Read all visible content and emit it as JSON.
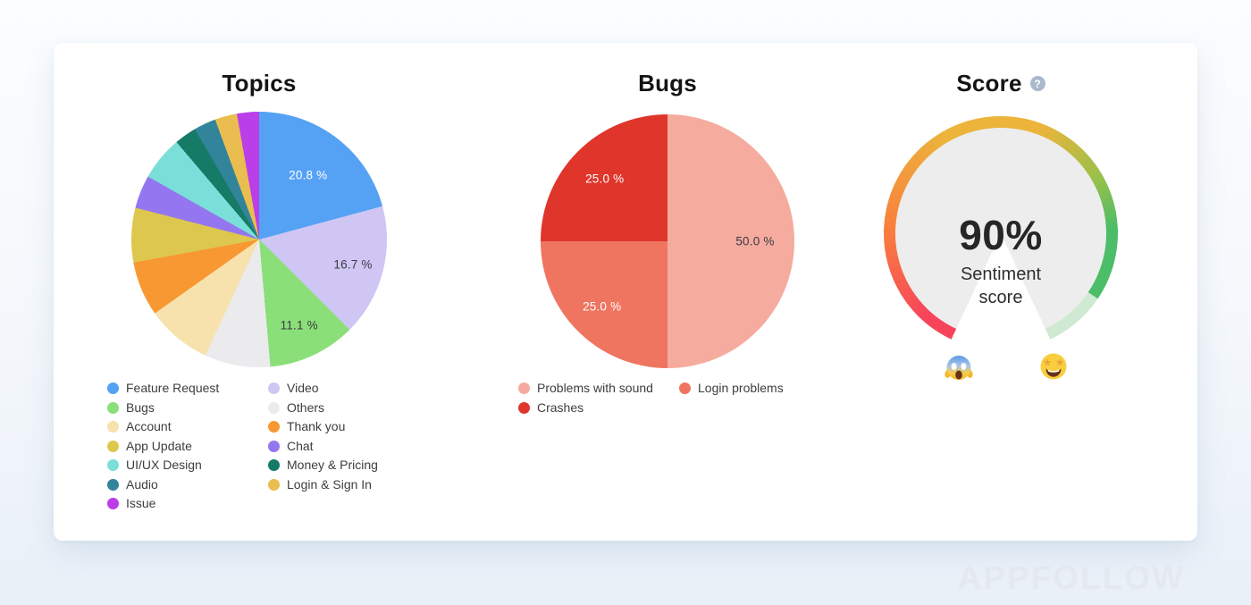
{
  "page": {
    "watermark": "APPFOLLOW"
  },
  "score_panel": {
    "help_label": "?"
  },
  "chart_data": [
    {
      "id": "topics",
      "type": "pie",
      "title": "Topics",
      "legend_position": "bottom",
      "slices": [
        {
          "label": "Feature Request",
          "value": 20.8,
          "color": "#55a2f4",
          "pct_label": "20.8 %",
          "label_color": "#ffffff",
          "label_r": 0.63
        },
        {
          "label": "Video",
          "value": 16.7,
          "color": "#cfc6f4",
          "pct_label": "16.7 %",
          "label_color": "#3a3a44",
          "label_r": 0.76
        },
        {
          "label": "Bugs",
          "value": 11.1,
          "color": "#8bdf79",
          "pct_label": "11.1 %",
          "label_color": "#3a3a44",
          "label_r": 0.74
        },
        {
          "label": "Others",
          "value": 8.3,
          "color": "#ebebee"
        },
        {
          "label": "Account",
          "value": 8.3,
          "color": "#f7e2ad"
        },
        {
          "label": "Thank you",
          "value": 6.9,
          "color": "#f89833"
        },
        {
          "label": "App Update",
          "value": 6.9,
          "color": "#ddc74e"
        },
        {
          "label": "Chat",
          "value": 4.2,
          "color": "#9477f0"
        },
        {
          "label": "UI/UX Design",
          "value": 5.6,
          "color": "#7adfd8"
        },
        {
          "label": "Money & Pricing",
          "value": 2.8,
          "color": "#157b66"
        },
        {
          "label": "Audio",
          "value": 2.8,
          "color": "#32849a"
        },
        {
          "label": "Login & Sign In",
          "value": 2.8,
          "color": "#e9bd4f"
        },
        {
          "label": "Issue",
          "value": 2.8,
          "color": "#bb3fe9"
        }
      ]
    },
    {
      "id": "bugs",
      "type": "pie",
      "title": "Bugs",
      "legend_position": "bottom",
      "slices": [
        {
          "label": "Problems with sound",
          "value": 50.0,
          "color": "#f5ab9e",
          "pct_label": "50.0 %",
          "label_color": "#3a3a44",
          "label_r": 0.69
        },
        {
          "label": "Login problems",
          "value": 25.0,
          "color": "#ef7560",
          "pct_label": "25.0 %",
          "label_color": "#ffffff",
          "label_r": 0.73
        },
        {
          "label": "Crashes",
          "value": 25.0,
          "color": "#e0352b",
          "pct_label": "25.0 %",
          "label_color": "#ffffff",
          "label_r": 0.7
        }
      ]
    },
    {
      "id": "score",
      "type": "gauge",
      "title": "Score",
      "value": 90,
      "value_label": "90%",
      "caption": "Sentiment score",
      "arc_span_deg": 310,
      "arc_stops": [
        {
          "at": 0,
          "color": "#f7445b"
        },
        {
          "at": 0.06,
          "color": "#f7445b"
        },
        {
          "at": 0.25,
          "color": "#f8823d"
        },
        {
          "at": 0.45,
          "color": "#ecb43b"
        },
        {
          "at": 0.63,
          "color": "#ecb43b"
        },
        {
          "at": 0.77,
          "color": "#9ac04a"
        },
        {
          "at": 0.87,
          "color": "#4cbd68"
        },
        {
          "at": 1,
          "color": "#4cbd68"
        }
      ],
      "remainder_color": "#cfe9d2",
      "track_fill": "#ededed",
      "emoji_low": {
        "name": "scream-emoji",
        "char": "😱"
      },
      "emoji_high": {
        "name": "star-struck-emoji",
        "char": "🤩"
      }
    }
  ]
}
